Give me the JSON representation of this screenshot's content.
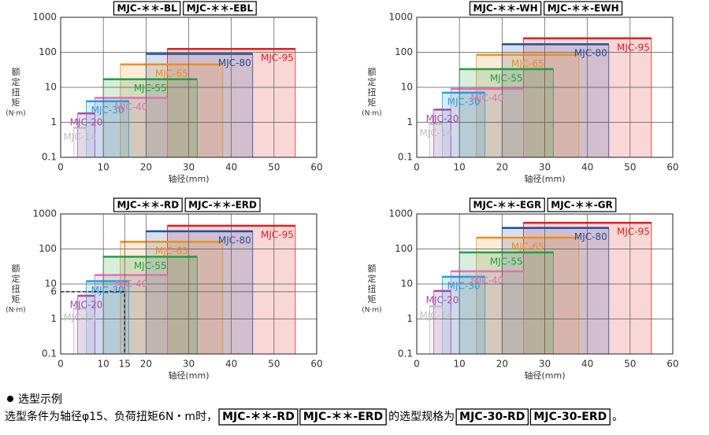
{
  "chart_data": [
    {
      "type": "range",
      "titles": [
        "MJC-＊＊-BL",
        "MJC-＊＊-EBL"
      ],
      "y_label": [
        "额",
        "定",
        "扭",
        "矩",
        "(N·m)"
      ],
      "x_label": "轴径(mm)",
      "categories": [
        "MJC-14",
        "MJC-20",
        "MJC-30",
        "MJC-40",
        "MJC-55",
        "MJC-65",
        "MJC-80",
        "MJC-95"
      ],
      "colors": [
        "#c0c0c0",
        "#a050a8",
        "#1ea0e0",
        "#e070b8",
        "#20a040",
        "#e89020",
        "#1f4fa0",
        "#e02020"
      ],
      "x_min": [
        3,
        4,
        6,
        8,
        10,
        14,
        20,
        25
      ],
      "x_max": [
        6,
        8,
        16,
        25,
        32,
        38,
        45,
        55
      ],
      "values": [
        0.7,
        1.8,
        4,
        5,
        17,
        45,
        90,
        125
      ],
      "xlim": [
        0,
        60
      ],
      "xticks": [
        0,
        10,
        20,
        30,
        40,
        50,
        60
      ],
      "ylim": [
        0.1,
        1000
      ],
      "yticks": [
        0.1,
        1,
        10,
        100,
        1000
      ],
      "yscale": "log",
      "grid": true
    },
    {
      "type": "range",
      "titles": [
        "MJC-＊＊-WH",
        "MJC-＊＊-EWH"
      ],
      "y_label": [
        "额",
        "定",
        "扭",
        "矩",
        "(N·m)"
      ],
      "x_label": "轴径(mm)",
      "categories": [
        "MJC-14",
        "MJC-20",
        "MJC-30",
        "MJC-40",
        "MJC-55",
        "MJC-65",
        "MJC-80",
        "MJC-95"
      ],
      "colors": [
        "#c0c0c0",
        "#a050a8",
        "#1ea0e0",
        "#e070b8",
        "#20a040",
        "#e89020",
        "#1f4fa0",
        "#e02020"
      ],
      "x_min": [
        3,
        4,
        6,
        8,
        10,
        14,
        20,
        25
      ],
      "x_max": [
        6,
        8,
        16,
        25,
        32,
        38,
        45,
        55
      ],
      "values": [
        0.9,
        2.3,
        7,
        9,
        33,
        85,
        170,
        250
      ],
      "xlim": [
        0,
        60
      ],
      "xticks": [
        0,
        10,
        20,
        30,
        40,
        50,
        60
      ],
      "ylim": [
        0.1,
        1000
      ],
      "yticks": [
        0.1,
        1,
        10,
        100,
        1000
      ],
      "yscale": "log",
      "grid": true
    },
    {
      "type": "range",
      "titles": [
        "MJC-＊＊-RD",
        "MJC-＊＊-ERD"
      ],
      "y_label": [
        "额",
        "定",
        "扭",
        "矩",
        "(N·m)"
      ],
      "x_label": "轴径(mm)",
      "categories": [
        "MJC-14",
        "MJC-20",
        "MJC-30",
        "MJC-40",
        "MJC-55",
        "MJC-65",
        "MJC-80",
        "MJC-95"
      ],
      "colors": [
        "#c0c0c0",
        "#a050a8",
        "#1ea0e0",
        "#e070b8",
        "#20a040",
        "#e89020",
        "#1f4fa0",
        "#e02020"
      ],
      "x_min": [
        3,
        4,
        6,
        8,
        10,
        14,
        20,
        25
      ],
      "x_max": [
        6,
        8,
        16,
        25,
        32,
        38,
        45,
        55
      ],
      "values": [
        2,
        4.6,
        12,
        18,
        60,
        160,
        320,
        460
      ],
      "guide": {
        "x": 15,
        "y": 6
      },
      "xlim": [
        0,
        60
      ],
      "xticks": [
        0,
        10,
        15,
        20,
        30,
        40,
        50,
        60
      ],
      "ylim": [
        0.1,
        1000
      ],
      "yticks": [
        0.1,
        1,
        6,
        10,
        100,
        1000
      ],
      "yscale": "log",
      "grid": true
    },
    {
      "type": "range",
      "titles": [
        "MJC-＊＊-EGR",
        "MJC-＊＊-GR"
      ],
      "y_label": [
        "额",
        "定",
        "扭",
        "矩",
        "(N·m)"
      ],
      "x_label": "轴径(mm)",
      "categories": [
        "MJC-14",
        "MJC-20",
        "MJC-30",
        "MJC-40",
        "MJC-55",
        "MJC-65",
        "MJC-80",
        "MJC-95"
      ],
      "colors": [
        "#c0c0c0",
        "#a050a8",
        "#1ea0e0",
        "#e070b8",
        "#20a040",
        "#e89020",
        "#1f4fa0",
        "#e02020"
      ],
      "x_min": [
        3,
        4,
        6,
        8,
        10,
        14,
        20,
        25
      ],
      "x_max": [
        6,
        8,
        16,
        25,
        32,
        38,
        45,
        55
      ],
      "values": [
        2.3,
        6.3,
        16,
        23,
        80,
        210,
        400,
        560
      ],
      "xlim": [
        0,
        60
      ],
      "xticks": [
        0,
        10,
        20,
        30,
        40,
        50,
        60
      ],
      "ylim": [
        0.1,
        1000
      ],
      "yticks": [
        0.1,
        1,
        10,
        100,
        1000
      ],
      "yscale": "log",
      "grid": true
    }
  ],
  "example": {
    "heading": "选型示例",
    "text1": "选型条件为轴径φ15、负荷扭矩6N・m时，",
    "boxes1": [
      "MJC-＊＊-RD",
      "MJC-＊＊-ERD"
    ],
    "text2": "的选型规格为",
    "boxes2": [
      "MJC-30-RD",
      "MJC-30-ERD"
    ],
    "text3": "。"
  }
}
